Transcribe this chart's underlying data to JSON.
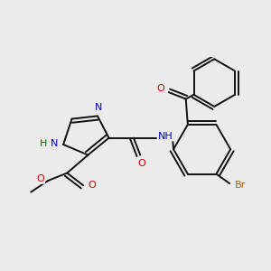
{
  "bg_color": "#ebebeb",
  "bond_color": "#111111",
  "bond_width": 1.4,
  "atom_colors": {
    "N": "#0000cc",
    "O": "#cc0000",
    "Br": "#b86000",
    "H": "#007700"
  },
  "font_size": 8.0
}
